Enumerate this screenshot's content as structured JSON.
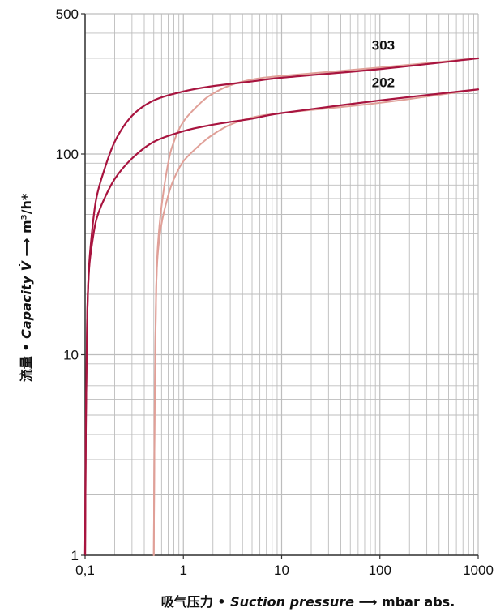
{
  "chart_data": {
    "type": "line",
    "x_scale": "log",
    "y_scale": "log",
    "xlim": [
      0.1,
      1000
    ],
    "ylim": [
      1,
      500
    ],
    "x_ticks": [
      {
        "value": 0.1,
        "label": "0,1"
      },
      {
        "value": 1,
        "label": "1"
      },
      {
        "value": 10,
        "label": "10"
      },
      {
        "value": 100,
        "label": "100"
      },
      {
        "value": 1000,
        "label": "1000"
      }
    ],
    "y_ticks": [
      {
        "value": 1,
        "label": "1"
      },
      {
        "value": 10,
        "label": "10"
      },
      {
        "value": 100,
        "label": "100"
      },
      {
        "value": 500,
        "label": "500"
      }
    ],
    "grid": true,
    "xlabel": {
      "cn": "吸气压力",
      "sep": " • ",
      "en": "Suction pressure",
      "arrow": " ⟶ ",
      "unit": "mbar abs."
    },
    "ylabel": {
      "cn": "流量",
      "sep": " • ",
      "en": "Capacity V̇",
      "arrow": " ⟶ ",
      "unit": "m³/h*"
    },
    "colors": {
      "dark": "#a8143f",
      "light": "#e0a098",
      "grid": "#bdbdbd",
      "axis": "#333333"
    },
    "series": [
      {
        "name": "303",
        "color_key": "dark",
        "x": [
          0.1,
          0.102,
          0.105,
          0.11,
          0.12,
          0.13,
          0.15,
          0.2,
          0.3,
          0.5,
          1,
          2,
          5,
          10,
          100,
          1000
        ],
        "y": [
          1,
          5,
          15,
          28,
          45,
          60,
          78,
          115,
          155,
          185,
          205,
          218,
          230,
          240,
          265,
          300
        ]
      },
      {
        "name": "202",
        "color_key": "dark",
        "x": [
          0.1,
          0.102,
          0.105,
          0.11,
          0.12,
          0.13,
          0.15,
          0.2,
          0.3,
          0.5,
          1,
          2,
          5,
          10,
          100,
          1000
        ],
        "y": [
          1,
          5,
          15,
          27,
          38,
          47,
          57,
          75,
          95,
          115,
          130,
          140,
          150,
          160,
          185,
          210
        ]
      },
      {
        "name": "",
        "color_key": "light",
        "x": [
          0.5,
          0.51,
          0.52,
          0.53,
          0.55,
          0.6,
          0.7,
          0.8,
          1,
          1.5,
          2,
          3,
          5,
          10,
          100,
          1000
        ],
        "y": [
          1,
          5,
          12,
          22,
          35,
          55,
          90,
          115,
          145,
          180,
          200,
          220,
          235,
          245,
          270,
          300
        ]
      },
      {
        "name": "",
        "color_key": "light",
        "x": [
          0.5,
          0.51,
          0.52,
          0.53,
          0.55,
          0.6,
          0.7,
          0.8,
          1,
          1.5,
          2,
          3,
          5,
          10,
          100,
          1000
        ],
        "y": [
          1,
          5,
          12,
          22,
          32,
          45,
          62,
          75,
          92,
          112,
          125,
          140,
          152,
          160,
          180,
          210
        ]
      }
    ],
    "annotations": [
      {
        "text": "303",
        "x": 100,
        "y": 330
      },
      {
        "text": "202",
        "x": 100,
        "y": 215
      }
    ]
  }
}
